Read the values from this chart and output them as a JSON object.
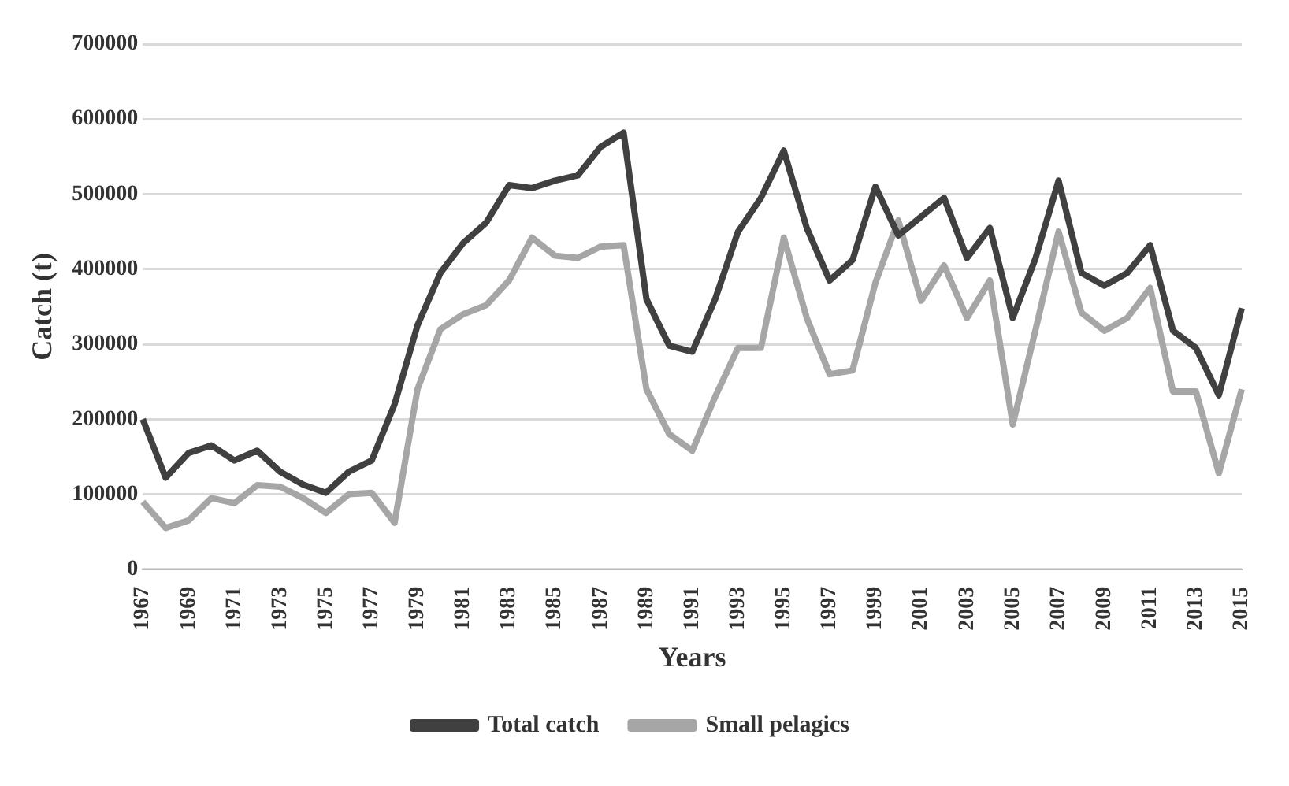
{
  "chart_data": {
    "type": "line",
    "xlabel": "Years",
    "ylabel": "Catch (t)",
    "categories": [
      "1967",
      null,
      "1969",
      null,
      "1971",
      null,
      "1973",
      null,
      "1975",
      null,
      "1977",
      null,
      "1979",
      null,
      "1981",
      null,
      "1983",
      null,
      "1985",
      null,
      "1987",
      null,
      "1989",
      null,
      "1991",
      null,
      "1993",
      null,
      "1995",
      null,
      "1997",
      null,
      "1999",
      null,
      "2001",
      null,
      "2003",
      null,
      "2005",
      null,
      "2007",
      null,
      "2009",
      null,
      "2011",
      null,
      "2013",
      null,
      "2015"
    ],
    "series": [
      {
        "name": "Total catch",
        "color": "#404040",
        "values": [
          200000,
          122000,
          155000,
          165000,
          145000,
          158000,
          130000,
          113000,
          102000,
          130000,
          145000,
          220000,
          325000,
          395000,
          435000,
          462000,
          512000,
          508000,
          518000,
          525000,
          563000,
          582000,
          360000,
          298000,
          290000,
          360000,
          450000,
          495000,
          558000,
          455000,
          385000,
          412000,
          510000,
          445000,
          470000,
          495000,
          415000,
          455000,
          335000,
          415000,
          518000,
          395000,
          378000,
          395000,
          432000,
          318000,
          295000,
          232000,
          348000
        ]
      },
      {
        "name": "Small pelagics",
        "color": "#a6a6a6",
        "values": [
          90000,
          55000,
          65000,
          95000,
          88000,
          112000,
          110000,
          95000,
          75000,
          100000,
          102000,
          62000,
          240000,
          320000,
          340000,
          352000,
          385000,
          442000,
          418000,
          415000,
          430000,
          432000,
          240000,
          180000,
          158000,
          230000,
          295000,
          295000,
          442000,
          335000,
          260000,
          265000,
          382000,
          465000,
          358000,
          405000,
          335000,
          385000,
          193000,
          320000,
          450000,
          342000,
          318000,
          335000,
          375000,
          237000,
          237000,
          128000,
          240000
        ]
      }
    ],
    "ylim": [
      0,
      700000
    ],
    "yticks": [
      0,
      100000,
      200000,
      300000,
      400000,
      500000,
      600000,
      700000
    ],
    "grid": "y",
    "legend": "bottom",
    "marker": "none",
    "line_style": "solid"
  }
}
